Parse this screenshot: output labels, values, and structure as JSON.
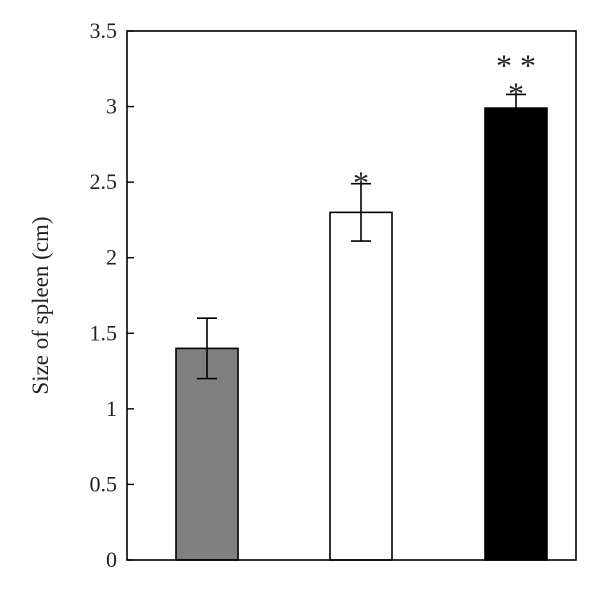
{
  "chart_data": {
    "type": "bar",
    "title": "",
    "xlabel": "",
    "ylabel": "Size of spleen (cm)",
    "ylim": [
      0,
      3.5
    ],
    "yticks": [
      0,
      0.5,
      1,
      1.5,
      2,
      2.5,
      3,
      3.5
    ],
    "ytick_labels": [
      "0",
      "0.5",
      "1",
      "1.5",
      "2",
      "2.5",
      "3",
      "3.5"
    ],
    "grid": false,
    "legend": "none",
    "bars": [
      {
        "value": 1.4,
        "error": 0.2,
        "color": "#808080",
        "annotation": []
      },
      {
        "value": 2.3,
        "error": 0.19,
        "color": "#ffffff",
        "annotation": [
          "*"
        ]
      },
      {
        "value": 2.99,
        "error": 0.09,
        "color": "#000000",
        "annotation": [
          "* *",
          "*"
        ]
      }
    ]
  }
}
